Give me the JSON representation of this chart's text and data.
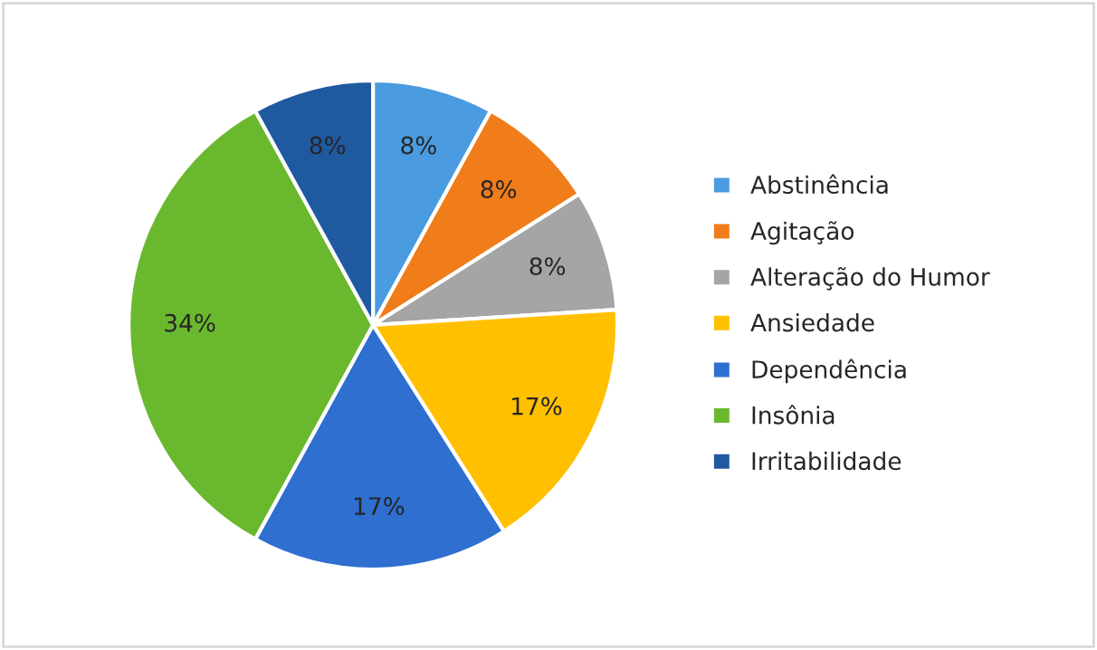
{
  "chart_data": {
    "type": "pie",
    "categories": [
      "Abstinência",
      "Agitação",
      "Alteração do Humor",
      "Ansiedade",
      "Dependência",
      "Insônia",
      "Irritabilidade"
    ],
    "values": [
      8,
      8,
      8,
      17,
      17,
      34,
      8
    ],
    "colors": [
      "#4a9be0",
      "#f07c1a",
      "#a5a5a5",
      "#ffc000",
      "#2e6fd0",
      "#6ab82e",
      "#1f5aa0"
    ],
    "value_labels": [
      "8%",
      "8%",
      "8%",
      "17%",
      "17%",
      "34%",
      "8%"
    ],
    "legend": "right"
  }
}
